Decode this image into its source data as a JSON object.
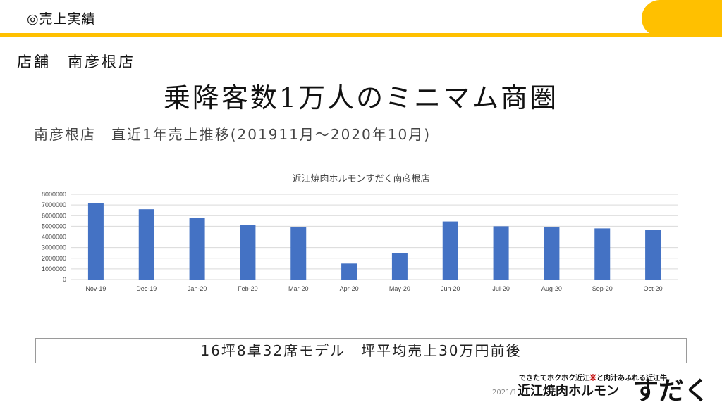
{
  "header": {
    "title": "◎売上実績"
  },
  "store_line": "店舗　南彦根店",
  "headline": "乗降客数1万人のミニマム商圏",
  "subtitle": "南彦根店　直近1年売上推移(201911月～2020年10月)",
  "chart_data": {
    "type": "bar",
    "title": "近江焼肉ホルモンすだく南彦根店",
    "xlabel": "",
    "ylabel": "",
    "categories": [
      "Nov-19",
      "Dec-19",
      "Jan-20",
      "Feb-20",
      "Mar-20",
      "Apr-20",
      "May-20",
      "Jun-20",
      "Jul-20",
      "Aug-20",
      "Sep-20",
      "Oct-20"
    ],
    "values": [
      7200000,
      6600000,
      5800000,
      5150000,
      4950000,
      1500000,
      2450000,
      5450000,
      5000000,
      4900000,
      4800000,
      4650000
    ],
    "ylim": [
      0,
      8000000
    ],
    "yticks": [
      0,
      1000000,
      2000000,
      3000000,
      4000000,
      5000000,
      6000000,
      7000000,
      8000000
    ],
    "grid": true,
    "legend": "none",
    "bar_color": "#4472C4"
  },
  "model_line": "16坪8卓32席モデル　坪平均売上30万円前後",
  "footer": {
    "date": "2021/1",
    "logo_tagline_a": "できたてホクホク近江",
    "logo_tagline_red": "米",
    "logo_tagline_b": "と肉汁あふれる近江牛",
    "logo_main": "近江焼肉ホルモン",
    "logo_big": "すだく"
  }
}
